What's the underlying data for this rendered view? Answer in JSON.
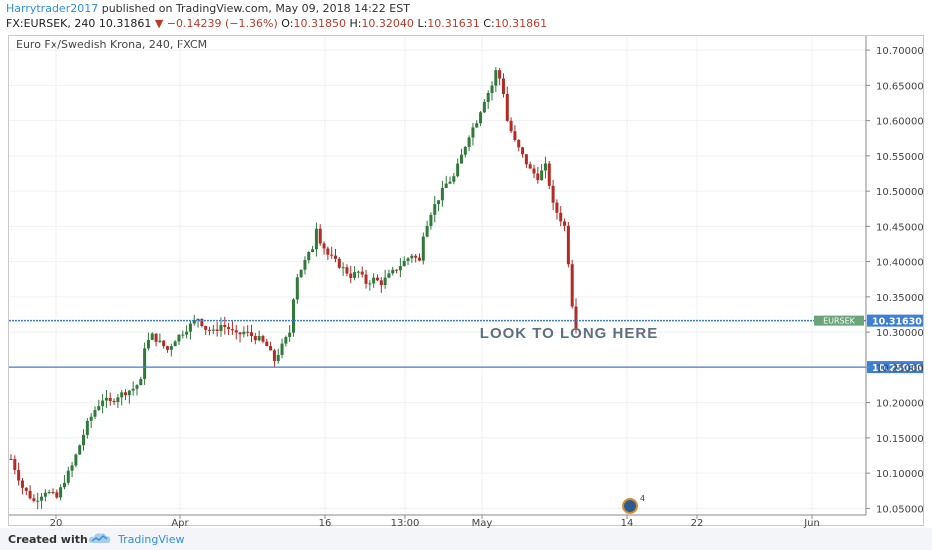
{
  "header": {
    "author": "Harrytrader2017",
    "published": " published on TradingView.com, May 09, 2018 14:22 EST",
    "symbol": "FX:EURSEK, 240",
    "last": "10.31861",
    "change": "−0.14239 (−1.36%)",
    "open_label": "O:",
    "open": "10.31850",
    "high_label": "H:",
    "high": "10.32040",
    "low_label": "L:",
    "low": "10.31631",
    "close_label": "C:",
    "close": "10.31861"
  },
  "chart_title": "Euro Fx/Swedish Krona, 240, FXCM",
  "footer": {
    "created_with": "Created with",
    "brand": "TradingView"
  },
  "colors": {
    "up": "#2f7a3a",
    "down": "#b22b25",
    "line": "#3d7fd6",
    "axis_text": "#444"
  },
  "chart_data": {
    "type": "candlestick",
    "title": "Euro Fx/Swedish Krona, 240, FXCM",
    "x_tick_labels": [
      "20",
      "Apr",
      "16",
      "13:00",
      "May",
      "14",
      "22",
      "Jun"
    ],
    "y_tick_labels": [
      "10.05000",
      "10.10000",
      "10.15000",
      "10.20000",
      "10.25000",
      "10.30000",
      "10.35000",
      "10.40000",
      "10.45000",
      "10.50000",
      "10.55000",
      "10.60000",
      "10.65000",
      "10.70000"
    ],
    "ylim": [
      10.025,
      10.72
    ],
    "price_path": [
      [
        0,
        10.12
      ],
      [
        3,
        10.08
      ],
      [
        6,
        10.06
      ],
      [
        9,
        10.075
      ],
      [
        12,
        10.065
      ],
      [
        14,
        10.09
      ],
      [
        16,
        10.11
      ],
      [
        18,
        10.14
      ],
      [
        20,
        10.17
      ],
      [
        22,
        10.19
      ],
      [
        24,
        10.205
      ],
      [
        26,
        10.2
      ],
      [
        28,
        10.21
      ],
      [
        30,
        10.215
      ],
      [
        32,
        10.22
      ],
      [
        34,
        10.23
      ],
      [
        35,
        10.28
      ],
      [
        37,
        10.295
      ],
      [
        39,
        10.285
      ],
      [
        41,
        10.275
      ],
      [
        43,
        10.29
      ],
      [
        45,
        10.3
      ],
      [
        47,
        10.31
      ],
      [
        49,
        10.32
      ],
      [
        51,
        10.305
      ],
      [
        53,
        10.3
      ],
      [
        55,
        10.31
      ],
      [
        57,
        10.305
      ],
      [
        59,
        10.295
      ],
      [
        61,
        10.3
      ],
      [
        63,
        10.295
      ],
      [
        65,
        10.29
      ],
      [
        67,
        10.28
      ],
      [
        69,
        10.26
      ],
      [
        71,
        10.28
      ],
      [
        73,
        10.3
      ],
      [
        74,
        10.35
      ],
      [
        75,
        10.38
      ],
      [
        77,
        10.4
      ],
      [
        79,
        10.42
      ],
      [
        80,
        10.45
      ],
      [
        81,
        10.43
      ],
      [
        83,
        10.41
      ],
      [
        85,
        10.4
      ],
      [
        87,
        10.39
      ],
      [
        89,
        10.38
      ],
      [
        91,
        10.385
      ],
      [
        93,
        10.37
      ],
      [
        95,
        10.375
      ],
      [
        97,
        10.37
      ],
      [
        99,
        10.38
      ],
      [
        101,
        10.39
      ],
      [
        103,
        10.4
      ],
      [
        105,
        10.41
      ],
      [
        107,
        10.4
      ],
      [
        108,
        10.44
      ],
      [
        110,
        10.47
      ],
      [
        112,
        10.49
      ],
      [
        114,
        10.51
      ],
      [
        116,
        10.52
      ],
      [
        118,
        10.55
      ],
      [
        120,
        10.58
      ],
      [
        122,
        10.6
      ],
      [
        124,
        10.63
      ],
      [
        126,
        10.65
      ],
      [
        127,
        10.67
      ],
      [
        128,
        10.66
      ],
      [
        129,
        10.64
      ],
      [
        130,
        10.6
      ],
      [
        132,
        10.57
      ],
      [
        134,
        10.55
      ],
      [
        136,
        10.53
      ],
      [
        138,
        10.52
      ],
      [
        140,
        10.535
      ],
      [
        141,
        10.51
      ],
      [
        142,
        10.48
      ],
      [
        144,
        10.46
      ],
      [
        145,
        10.45
      ],
      [
        146,
        10.4
      ],
      [
        147,
        10.34
      ],
      [
        148,
        10.31
      ]
    ],
    "horizontal_lines": [
      10.3163,
      10.25036
    ],
    "price_labels": [
      "10.31630",
      "10.25036"
    ],
    "symbol_tag": "EURSEK",
    "annotation": "LOOK TO LONG HERE",
    "event_badge": "4"
  }
}
